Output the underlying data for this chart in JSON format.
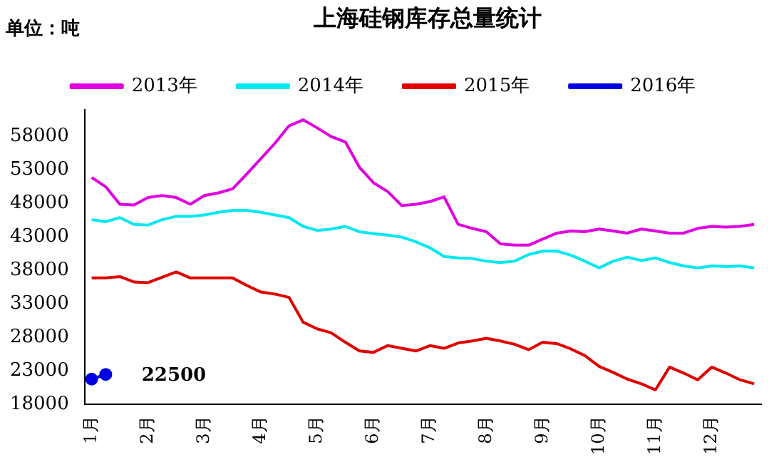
{
  "chart_data": {
    "type": "line",
    "title": "上海硅钢库存总量统计",
    "ylabel": "单位：吨",
    "categories": [
      "1月",
      null,
      null,
      null,
      "2月",
      null,
      null,
      null,
      "3月",
      null,
      null,
      null,
      "4月",
      null,
      null,
      null,
      "5月",
      null,
      null,
      null,
      "6月",
      null,
      null,
      null,
      "7月",
      null,
      null,
      null,
      "8月",
      null,
      null,
      null,
      "9月",
      null,
      null,
      null,
      "10月",
      null,
      null,
      null,
      "11月",
      null,
      null,
      null,
      "12月",
      null,
      null,
      null
    ],
    "series": [
      {
        "name": "2013年",
        "color": "#e000e0",
        "values": [
          51900,
          50500,
          47900,
          47800,
          48900,
          49200,
          48900,
          47900,
          49200,
          49600,
          50200,
          52400,
          54700,
          57000,
          59600,
          60500,
          59300,
          58000,
          57200,
          53400,
          51100,
          49800,
          47700,
          47900,
          48300,
          49000,
          44900,
          44300,
          43800,
          42000,
          41800,
          41800,
          42700,
          43600,
          43900,
          43800,
          44200,
          43900,
          43600,
          44200,
          43900,
          43600,
          43600,
          44300,
          44600,
          44500,
          44600,
          44900
        ]
      },
      {
        "name": "2014年",
        "color": "#00e8f0",
        "values": [
          45600,
          45300,
          45900,
          44900,
          44800,
          45600,
          46100,
          46100,
          46300,
          46700,
          47000,
          47000,
          46700,
          46300,
          45900,
          44600,
          44000,
          44200,
          44600,
          43800,
          43500,
          43300,
          43000,
          42300,
          41400,
          40100,
          39900,
          39800,
          39400,
          39200,
          39400,
          40400,
          40900,
          40900,
          40300,
          39400,
          38400,
          39400,
          40000,
          39500,
          39900,
          39200,
          38700,
          38400,
          38700,
          38600,
          38700,
          38400
        ]
      },
      {
        "name": "2015年",
        "color": "#e00000",
        "values": [
          36900,
          36900,
          37100,
          36300,
          36200,
          37000,
          37800,
          36900,
          36900,
          36900,
          36900,
          35800,
          34800,
          34500,
          34000,
          30300,
          29300,
          28700,
          27300,
          26000,
          25800,
          26800,
          26400,
          26000,
          26800,
          26400,
          27200,
          27500,
          27900,
          27500,
          27000,
          26200,
          27300,
          27100,
          26300,
          25300,
          23700,
          22800,
          21800,
          21100,
          20200,
          23600,
          22700,
          21700,
          23600,
          22700,
          21700,
          21100
        ]
      },
      {
        "name": "2016年",
        "color": "#0000e0",
        "marker": "circle",
        "values": [
          21800,
          22500,
          null,
          null,
          null,
          null,
          null,
          null,
          null,
          null,
          null,
          null,
          null,
          null,
          null,
          null,
          null,
          null,
          null,
          null,
          null,
          null,
          null,
          null,
          null,
          null,
          null,
          null,
          null,
          null,
          null,
          null,
          null,
          null,
          null,
          null,
          null,
          null,
          null,
          null,
          null,
          null,
          null,
          null,
          null,
          null,
          null,
          null
        ]
      }
    ],
    "ylim": [
      18000,
      62000
    ],
    "yticks": [
      18000,
      23000,
      28000,
      33000,
      38000,
      43000,
      48000,
      53000,
      58000
    ],
    "annotations": [
      "22500"
    ],
    "grid": false,
    "legend": "top",
    "line_style": "solid"
  }
}
